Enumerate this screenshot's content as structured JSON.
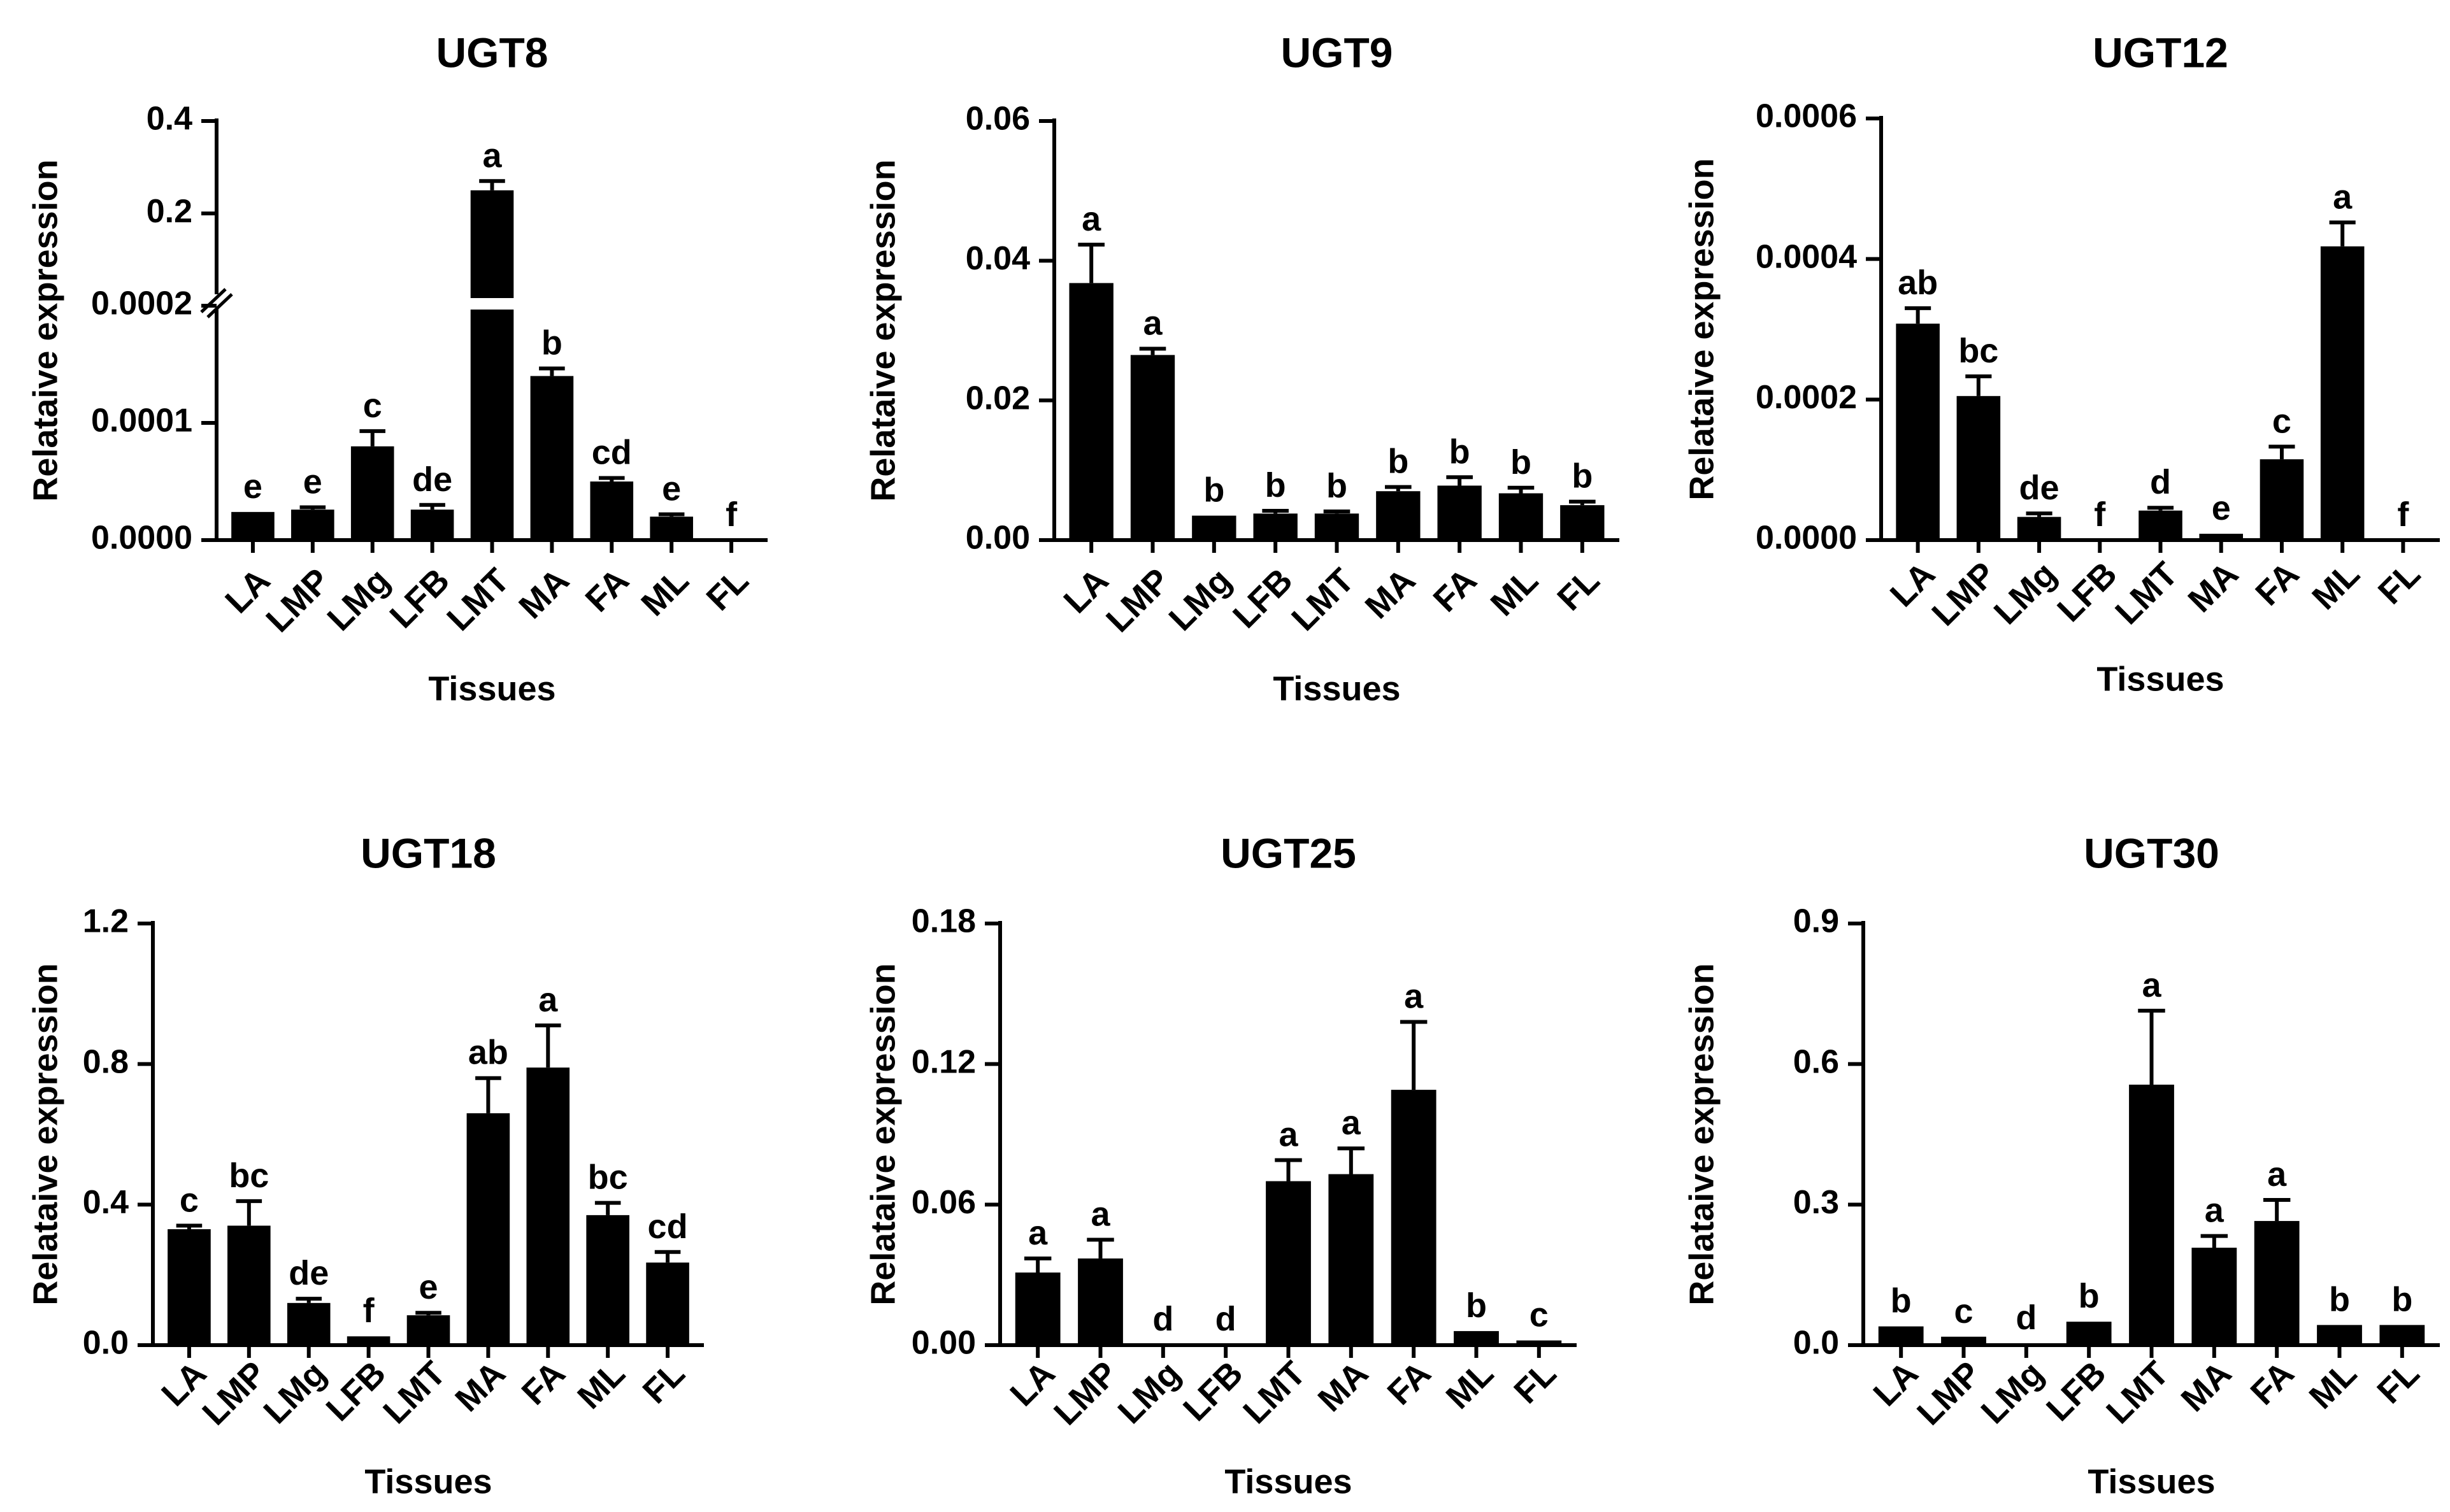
{
  "chart_data": [
    {
      "type": "bar",
      "title": "UGT8",
      "xlabel": "Tissues",
      "ylabel": "Relataive expression",
      "axis_break": true,
      "break_at": 0.0002,
      "lower_range": [
        0,
        0.0002
      ],
      "upper_range": [
        0.0002,
        0.4
      ],
      "lower_ticks": [
        0,
        0.0001,
        0.0002
      ],
      "upper_ticks": [
        0.2,
        0.4
      ],
      "tick_labels": [
        "0.0000",
        "0.0001",
        "0.0002",
        "0.2",
        "0.4"
      ],
      "categories": [
        "LA",
        "LMP",
        "LMg",
        "LFB",
        "LMT",
        "MA",
        "FA",
        "ML",
        "FL"
      ],
      "values": [
        2.4e-05,
        2.6e-05,
        8e-05,
        2.6e-05,
        0.25,
        0.00014,
        5e-05,
        2e-05,
        0.0
      ],
      "errors": [
        0.0,
        2e-06,
        1.3e-05,
        4e-06,
        0.02,
        6.5e-06,
        3e-06,
        2e-06,
        0.0
      ],
      "letters": [
        "e",
        "e",
        "c",
        "de",
        "a",
        "b",
        "cd",
        "e",
        "f"
      ]
    },
    {
      "type": "bar",
      "title": "UGT9",
      "xlabel": "Tissues",
      "ylabel": "Relataive expression",
      "ylim": [
        0,
        0.06
      ],
      "ticks": [
        0,
        0.02,
        0.04,
        0.06
      ],
      "tick_labels": [
        "0.00",
        "0.02",
        "0.04",
        "0.06"
      ],
      "categories": [
        "LA",
        "LMP",
        "LMg",
        "LFB",
        "LMT",
        "MA",
        "FA",
        "ML",
        "FL"
      ],
      "values": [
        0.0368,
        0.0265,
        0.0035,
        0.0038,
        0.0038,
        0.007,
        0.0078,
        0.0067,
        0.005
      ],
      "errors": [
        0.0055,
        0.0009,
        0.0,
        0.0004,
        0.0003,
        0.0006,
        0.0012,
        0.0008,
        0.0005
      ],
      "letters": [
        "a",
        "a",
        "b",
        "b",
        "b",
        "b",
        "b",
        "b",
        "b"
      ]
    },
    {
      "type": "bar",
      "title": "UGT12",
      "xlabel": "Tissues",
      "ylabel": "Relataive expression",
      "ylim": [
        0,
        0.0006
      ],
      "ticks": [
        0,
        0.0002,
        0.0004,
        0.0006
      ],
      "tick_labels": [
        "0.0000",
        "0.0002",
        "0.0004",
        "0.0006"
      ],
      "categories": [
        "LA",
        "LMP",
        "LMg",
        "LFB",
        "LMT",
        "MA",
        "FA",
        "ML",
        "FL"
      ],
      "values": [
        0.000308,
        0.000205,
        3.3e-05,
        0.0,
        4.2e-05,
        9e-06,
        0.000115,
        0.000418,
        0.0
      ],
      "errors": [
        2.2e-05,
        2.8e-05,
        5e-06,
        0.0,
        4e-06,
        0.0,
        1.8e-05,
        3.4e-05,
        0.0
      ],
      "letters": [
        "ab",
        "bc",
        "de",
        "f",
        "d",
        "e",
        "c",
        "a",
        "f"
      ]
    },
    {
      "type": "bar",
      "title": "UGT18",
      "xlabel": "Tissues",
      "ylabel": "Relataive expression",
      "ylim": [
        0,
        1.2
      ],
      "ticks": [
        0,
        0.4,
        0.8,
        1.2
      ],
      "tick_labels": [
        "0.0",
        "0.4",
        "0.8",
        "1.2"
      ],
      "categories": [
        "LA",
        "LMP",
        "LMg",
        "LFB",
        "LMT",
        "MA",
        "FA",
        "ML",
        "FL"
      ],
      "values": [
        0.33,
        0.34,
        0.12,
        0.025,
        0.085,
        0.66,
        0.79,
        0.37,
        0.235
      ],
      "errors": [
        0.01,
        0.07,
        0.012,
        0.0,
        0.007,
        0.1,
        0.12,
        0.035,
        0.03
      ],
      "letters": [
        "c",
        "bc",
        "de",
        "f",
        "e",
        "ab",
        "a",
        "bc",
        "cd"
      ]
    },
    {
      "type": "bar",
      "title": "UGT25",
      "xlabel": "Tissues",
      "ylabel": "Relataive expression",
      "ylim": [
        0,
        0.18
      ],
      "ticks": [
        0,
        0.06,
        0.12,
        0.18
      ],
      "tick_labels": [
        "0.00",
        "0.06",
        "0.12",
        "0.18"
      ],
      "categories": [
        "LA",
        "LMP",
        "LMg",
        "LFB",
        "LMT",
        "MA",
        "FA",
        "ML",
        "FL"
      ],
      "values": [
        0.031,
        0.037,
        0.0003,
        0.0003,
        0.07,
        0.073,
        0.109,
        0.006,
        0.002
      ],
      "errors": [
        0.006,
        0.008,
        0.0,
        0.0,
        0.009,
        0.011,
        0.029,
        0.0,
        0.0
      ],
      "letters": [
        "a",
        "a",
        "d",
        "d",
        "a",
        "a",
        "a",
        "b",
        "c"
      ]
    },
    {
      "type": "bar",
      "title": "UGT30",
      "xlabel": "Tissues",
      "ylabel": "Relataive expression",
      "ylim": [
        0,
        0.9
      ],
      "ticks": [
        0,
        0.3,
        0.6,
        0.9
      ],
      "tick_labels": [
        "0.0",
        "0.3",
        "0.6",
        "0.9"
      ],
      "categories": [
        "LA",
        "LMP",
        "LMg",
        "LFB",
        "LMT",
        "MA",
        "FA",
        "ML",
        "FL"
      ],
      "values": [
        0.04,
        0.018,
        0.004,
        0.05,
        0.556,
        0.208,
        0.265,
        0.043,
        0.043
      ],
      "errors": [
        0.0,
        0.0,
        0.0,
        0.0,
        0.158,
        0.025,
        0.045,
        0.0,
        0.0
      ],
      "letters": [
        "b",
        "c",
        "d",
        "b",
        "a",
        "a",
        "a",
        "b",
        "b"
      ]
    }
  ]
}
